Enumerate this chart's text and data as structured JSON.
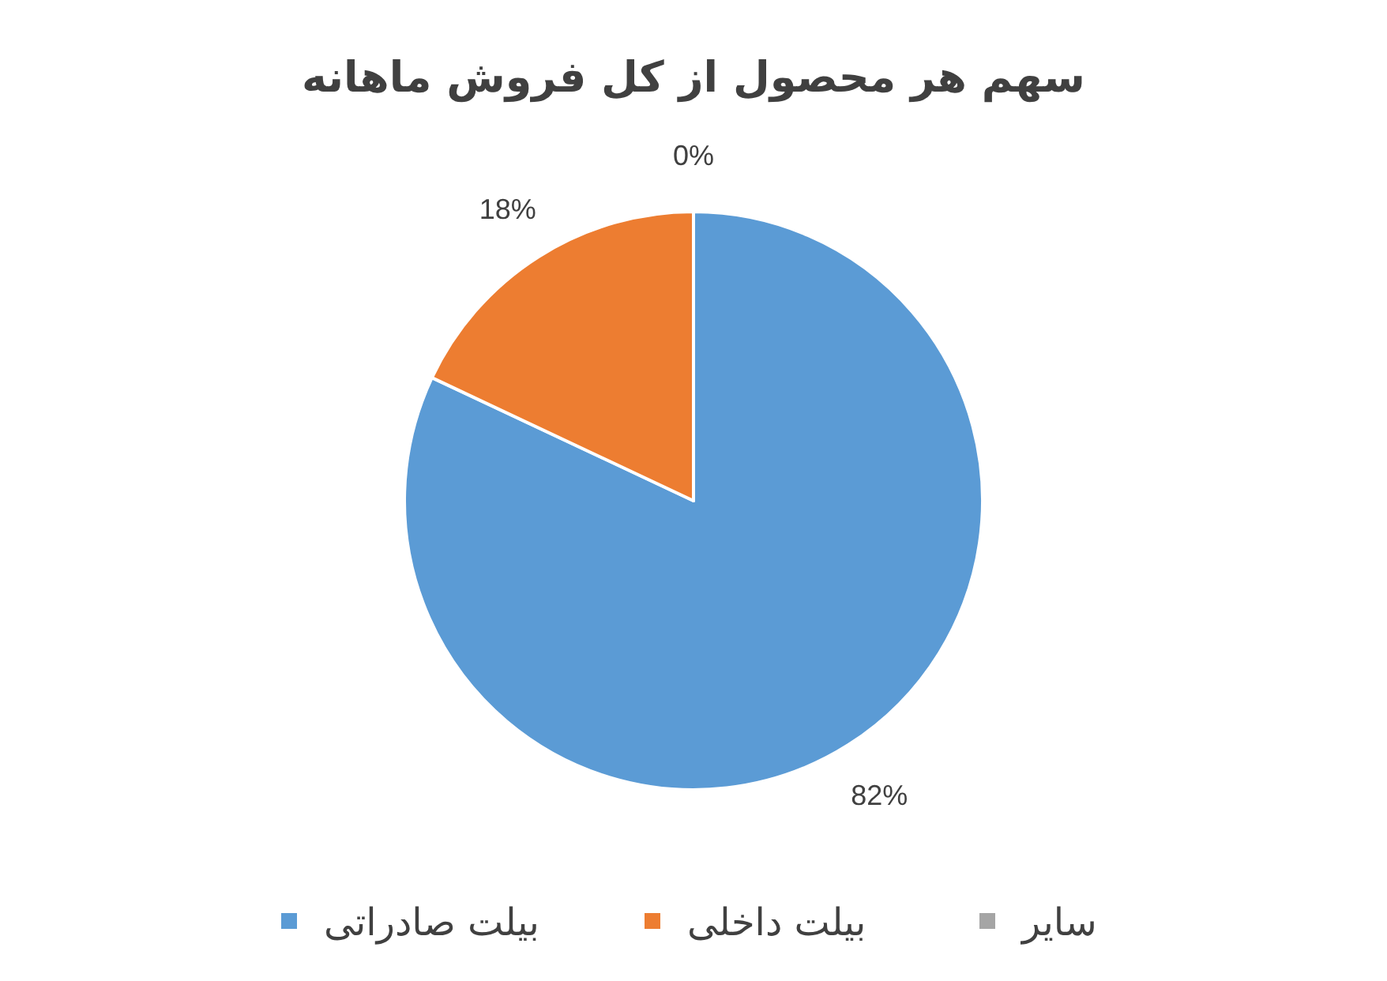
{
  "chart_data": {
    "type": "pie",
    "title": "سهم هر محصول از کل فروش ماهانه",
    "categories": [
      "بیلت صادراتی",
      "بیلت داخلی",
      "سایر"
    ],
    "values": [
      82,
      18,
      0
    ],
    "colors": [
      "#5b9bd5",
      "#ed7d31",
      "#a5a5a5"
    ],
    "value_labels": [
      "82%",
      "18%",
      "0%"
    ],
    "legend": "bottom"
  }
}
